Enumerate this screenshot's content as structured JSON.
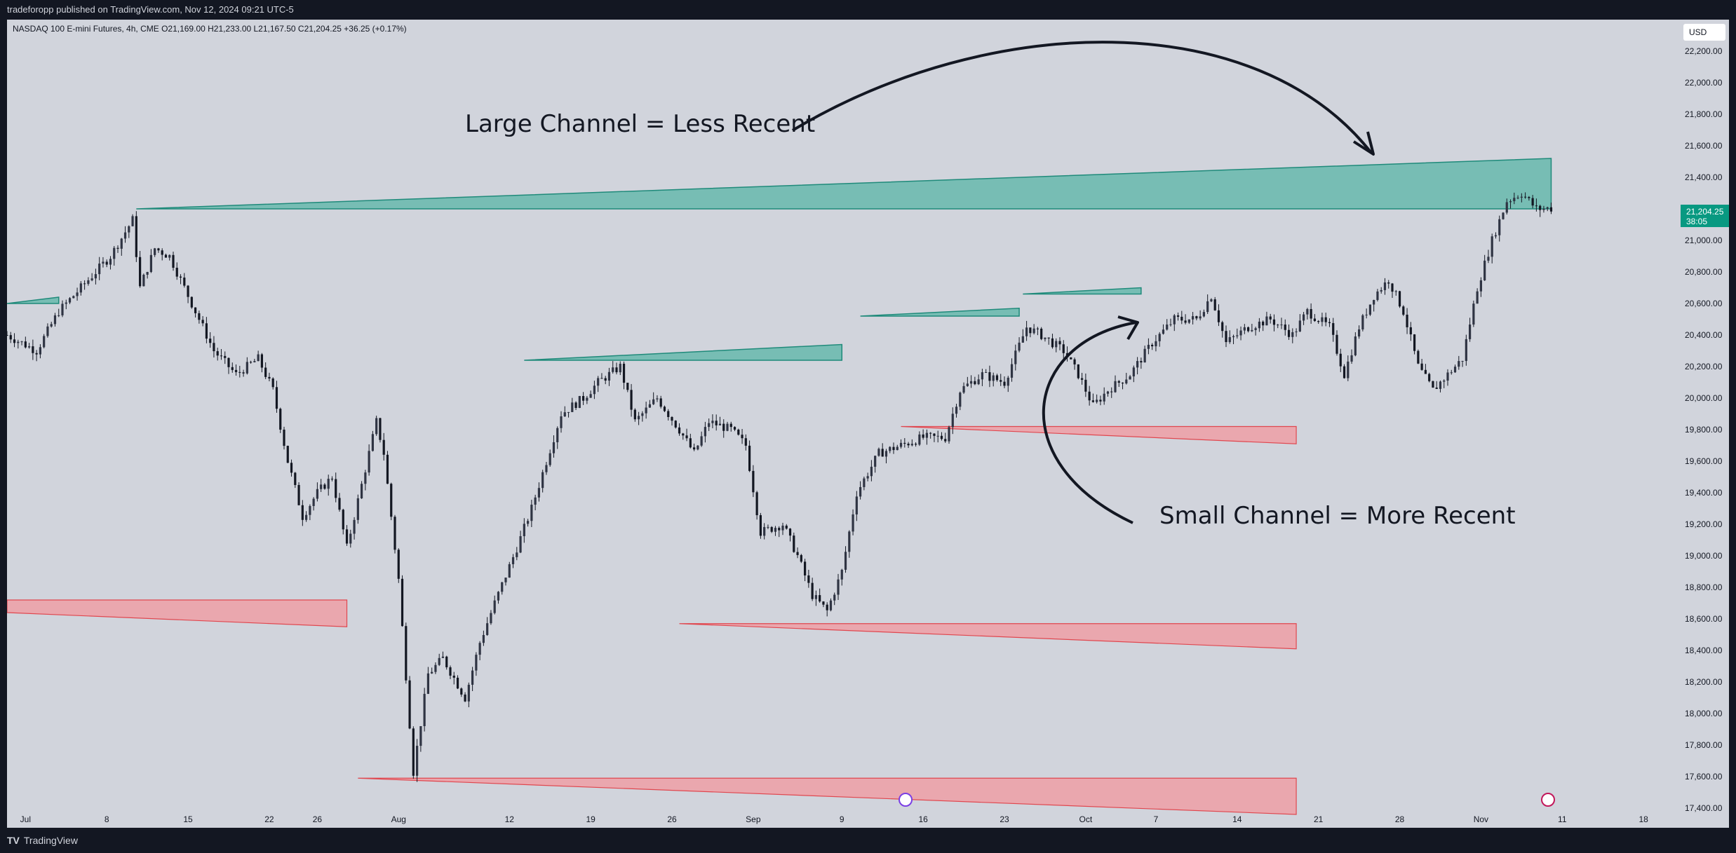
{
  "header": {
    "publisher": "tradeforopp published on TradingView.com, Nov 12, 2024 09:21 UTC-5"
  },
  "legend": {
    "text": "NASDAQ 100 E-mini Futures, 4h, CME  O21,169.00  H21,233.00  L21,167.50  C21,204.25  +36.25 (+0.17%)"
  },
  "currency": "USD",
  "last_price": {
    "value": "21,204.25",
    "countdown": "38:05"
  },
  "annotations": {
    "large_channel": "Large Channel = Less Recent",
    "small_channel": "Small Channel = More Recent"
  },
  "footer": {
    "brand": "TradingView",
    "mark": "TV"
  },
  "colors": {
    "bull_zone": "#77bdb4",
    "bear_zone": "#eaa7ae",
    "bg": "#d1d4dc",
    "frame": "#131722"
  },
  "chart_data": {
    "type": "candlestick",
    "title": "NASDAQ 100 E-mini Futures, 4h, CME",
    "y_axis_ticks": [
      "22,200.00",
      "22,000.00",
      "21,800.00",
      "21,600.00",
      "21,400.00",
      "21,200.00",
      "21,000.00",
      "20,800.00",
      "20,600.00",
      "20,400.00",
      "20,200.00",
      "20,000.00",
      "19,800.00",
      "19,600.00",
      "19,400.00",
      "19,200.00",
      "19,000.00",
      "18,800.00",
      "18,600.00",
      "18,400.00",
      "18,200.00",
      "18,000.00",
      "17,800.00",
      "17,600.00",
      "17,400.00"
    ],
    "y_axis_values": [
      22200,
      22000,
      21800,
      21600,
      21400,
      21200,
      21000,
      20800,
      20600,
      20400,
      20200,
      20000,
      19800,
      19600,
      19400,
      19200,
      19000,
      18800,
      18600,
      18400,
      18200,
      18000,
      17800,
      17600,
      17400
    ],
    "ylim": [
      17400,
      22400
    ],
    "x_axis_labels": [
      "Jul",
      "8",
      "15",
      "22",
      "26",
      "Aug",
      "12",
      "19",
      "26",
      "Sep",
      "9",
      "16",
      "23",
      "Oct",
      "7",
      "14",
      "21",
      "28",
      "Nov",
      "11",
      "18"
    ],
    "x_axis_index": [
      5,
      27,
      49,
      71,
      84,
      106,
      136,
      158,
      180,
      202,
      226,
      248,
      270,
      292,
      311,
      333,
      355,
      377,
      399,
      421,
      443
    ],
    "price_path": [
      [
        0,
        20400
      ],
      [
        8,
        20300
      ],
      [
        14,
        20550
      ],
      [
        20,
        20700
      ],
      [
        28,
        20900
      ],
      [
        34,
        21130
      ],
      [
        36,
        20700
      ],
      [
        40,
        20950
      ],
      [
        44,
        20900
      ],
      [
        50,
        20600
      ],
      [
        56,
        20300
      ],
      [
        62,
        20150
      ],
      [
        68,
        20250
      ],
      [
        72,
        20050
      ],
      [
        76,
        19600
      ],
      [
        80,
        19250
      ],
      [
        84,
        19400
      ],
      [
        88,
        19500
      ],
      [
        92,
        19050
      ],
      [
        96,
        19450
      ],
      [
        100,
        19850
      ],
      [
        102,
        19650
      ],
      [
        106,
        18850
      ],
      [
        110,
        17630
      ],
      [
        114,
        18250
      ],
      [
        118,
        18350
      ],
      [
        124,
        18100
      ],
      [
        128,
        18450
      ],
      [
        132,
        18700
      ],
      [
        138,
        19050
      ],
      [
        142,
        19300
      ],
      [
        146,
        19600
      ],
      [
        150,
        19900
      ],
      [
        156,
        20000
      ],
      [
        160,
        20100
      ],
      [
        166,
        20200
      ],
      [
        170,
        19850
      ],
      [
        176,
        20000
      ],
      [
        182,
        19800
      ],
      [
        186,
        19650
      ],
      [
        190,
        19850
      ],
      [
        196,
        19800
      ],
      [
        200,
        19700
      ],
      [
        204,
        19150
      ],
      [
        210,
        19200
      ],
      [
        214,
        19000
      ],
      [
        218,
        18750
      ],
      [
        222,
        18650
      ],
      [
        226,
        18900
      ],
      [
        230,
        19400
      ],
      [
        236,
        19650
      ],
      [
        242,
        19700
      ],
      [
        248,
        19750
      ],
      [
        254,
        19750
      ],
      [
        258,
        20050
      ],
      [
        264,
        20150
      ],
      [
        270,
        20100
      ],
      [
        276,
        20450
      ],
      [
        280,
        20400
      ],
      [
        286,
        20300
      ],
      [
        290,
        20150
      ],
      [
        294,
        19950
      ],
      [
        298,
        20050
      ],
      [
        304,
        20150
      ],
      [
        310,
        20350
      ],
      [
        316,
        20500
      ],
      [
        322,
        20500
      ],
      [
        326,
        20650
      ],
      [
        330,
        20350
      ],
      [
        336,
        20450
      ],
      [
        342,
        20500
      ],
      [
        348,
        20400
      ],
      [
        352,
        20550
      ],
      [
        358,
        20450
      ],
      [
        362,
        20150
      ],
      [
        366,
        20450
      ],
      [
        370,
        20650
      ],
      [
        374,
        20750
      ],
      [
        378,
        20550
      ],
      [
        382,
        20200
      ],
      [
        386,
        20050
      ],
      [
        390,
        20150
      ],
      [
        394,
        20250
      ],
      [
        398,
        20700
      ],
      [
        402,
        21000
      ],
      [
        406,
        21250
      ],
      [
        410,
        21300
      ],
      [
        414,
        21200
      ],
      [
        418,
        21204
      ]
    ],
    "zones": [
      {
        "kind": "bull",
        "from_idx": 35,
        "to_idx": 418,
        "top_start": 21200,
        "top_end": 21520,
        "bottom": 21200
      },
      {
        "kind": "bull",
        "from_idx": 0,
        "to_idx": 14,
        "top_start": 20600,
        "top_end": 20640,
        "bottom": 20600
      },
      {
        "kind": "bull",
        "from_idx": 140,
        "to_idx": 226,
        "top_start": 20240,
        "top_end": 20340,
        "bottom": 20240
      },
      {
        "kind": "bull",
        "from_idx": 231,
        "to_idx": 274,
        "top_start": 20520,
        "top_end": 20570,
        "bottom": 20520
      },
      {
        "kind": "bull",
        "from_idx": 275,
        "to_idx": 307,
        "top_start": 20660,
        "top_end": 20700,
        "bottom": 20660
      },
      {
        "kind": "bear",
        "from_idx": 0,
        "to_idx": 92,
        "top_start": 18720,
        "top_end": 18720,
        "bottom_start": 18640,
        "bottom_end": 18550
      },
      {
        "kind": "bear",
        "from_idx": 182,
        "to_idx": 349,
        "top_start": 18570,
        "top_end": 18570,
        "bottom_start": 18570,
        "bottom_end": 18410
      },
      {
        "kind": "bear",
        "from_idx": 95,
        "to_idx": 349,
        "top_start": 17590,
        "top_end": 17590,
        "bottom_start": 17590,
        "bottom_end": 17360
      },
      {
        "kind": "bear",
        "from_idx": 242,
        "to_idx": 349,
        "top_start": 19820,
        "top_end": 19820,
        "bottom_start": 19820,
        "bottom_end": 19710
      }
    ]
  }
}
